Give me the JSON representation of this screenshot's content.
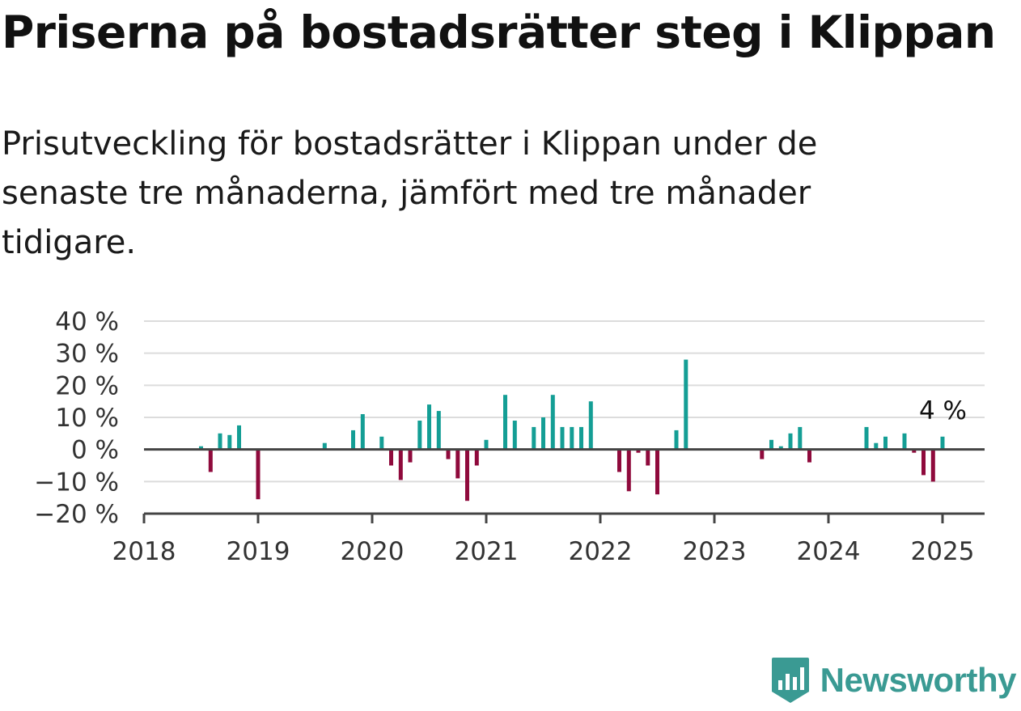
{
  "title": "Priserna på bostadsrätter steg i Klippan",
  "subtitle": "Prisutveckling för bostadsrätter i Klippan under de senaste tre månaderna, jämfört med tre månader tidigare.",
  "brand": {
    "name": "Newsworthy",
    "color": "#3a9a93",
    "icon": "bar-chart-pin-icon"
  },
  "colors": {
    "positive": "#149e95",
    "negative": "#8f0a3c"
  },
  "chart_data": {
    "type": "bar",
    "xlim": [
      "2018-01",
      "2025-05"
    ],
    "ylim": [
      -20,
      40
    ],
    "yticks": [
      40,
      30,
      20,
      10,
      0,
      -10,
      -20
    ],
    "ytick_labels": [
      "40 %",
      "30 %",
      "20 %",
      "10 %",
      "0 %",
      "−10 %",
      "−20 %"
    ],
    "xtick_labels": [
      "2018",
      "2019",
      "2020",
      "2021",
      "2022",
      "2023",
      "2024",
      "2025"
    ],
    "grid": true,
    "annotation": {
      "text": "4 %",
      "x": "2025-01",
      "y": 4
    },
    "series": [
      {
        "x": [
          "2018-07",
          "2018-08",
          "2018-09",
          "2018-10",
          "2018-11",
          "2019-01",
          "2019-08",
          "2019-11",
          "2019-12",
          "2020-02",
          "2020-03",
          "2020-04",
          "2020-05",
          "2020-06",
          "2020-07",
          "2020-08",
          "2020-09",
          "2020-10",
          "2020-11",
          "2020-12",
          "2021-01",
          "2021-03",
          "2021-04",
          "2021-06",
          "2021-07",
          "2021-08",
          "2021-09",
          "2021-10",
          "2021-11",
          "2021-12",
          "2022-03",
          "2022-04",
          "2022-05",
          "2022-06",
          "2022-07",
          "2022-09",
          "2022-10",
          "2023-06",
          "2023-07",
          "2023-08",
          "2023-09",
          "2023-10",
          "2023-11",
          "2024-05",
          "2024-06",
          "2024-07",
          "2024-09",
          "2024-10",
          "2024-11",
          "2024-12",
          "2025-01"
        ],
        "values": [
          1,
          -7,
          5,
          4.5,
          7.5,
          -15.5,
          2,
          6,
          11,
          4,
          -5,
          -9.5,
          -4,
          9,
          14,
          12,
          -3,
          -9,
          -16,
          -5,
          3,
          17,
          9,
          7,
          10,
          17,
          7,
          7,
          7,
          15,
          -7,
          -13,
          -1,
          -5,
          -14,
          6,
          28,
          -3,
          3,
          1,
          5,
          7,
          -4,
          7,
          2,
          4,
          5,
          -1,
          -8,
          -10,
          4
        ]
      }
    ]
  }
}
